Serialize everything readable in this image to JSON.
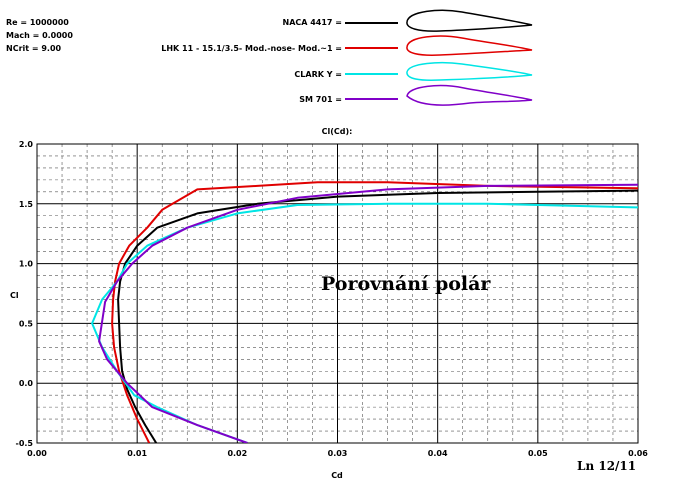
{
  "params": [
    "Re = 1000000",
    "Mach = 0.0000",
    "NCrit = 9.00"
  ],
  "chart_data": {
    "type": "line",
    "title": "Cl(Cd):",
    "xlabel": "Cd",
    "ylabel": "Cl",
    "xlim": [
      0.0,
      0.06
    ],
    "ylim": [
      -0.5,
      2.0
    ],
    "xticks": [
      "0.00",
      "0.01",
      "0.02",
      "0.03",
      "0.04",
      "0.05",
      "0.06"
    ],
    "yticks": [
      "-0.5",
      "0.0",
      "0.5",
      "1.0",
      "1.5",
      "2.0"
    ],
    "grid": true,
    "legend_position": "top",
    "annotations": [
      "Porovnání  polár",
      "Ln 12/11"
    ],
    "series": [
      {
        "name": "NACA 4417 =",
        "color": "#000000",
        "points": [
          [
            0.0119,
            -0.5
          ],
          [
            0.0108,
            -0.35
          ],
          [
            0.0098,
            -0.2
          ],
          [
            0.009,
            -0.05
          ],
          [
            0.0085,
            0.1
          ],
          [
            0.0083,
            0.3
          ],
          [
            0.0082,
            0.5
          ],
          [
            0.0081,
            0.7
          ],
          [
            0.0083,
            0.85
          ],
          [
            0.0088,
            1.0
          ],
          [
            0.01,
            1.15
          ],
          [
            0.012,
            1.3
          ],
          [
            0.016,
            1.42
          ],
          [
            0.022,
            1.5
          ],
          [
            0.03,
            1.56
          ],
          [
            0.04,
            1.59
          ],
          [
            0.05,
            1.6
          ],
          [
            0.06,
            1.61
          ]
        ]
      },
      {
        "name": "LHK 11 - 15.1/3.5- Mod.-nose- Mod.~1 =",
        "color": "#e00000",
        "points": [
          [
            0.0112,
            -0.5
          ],
          [
            0.01,
            -0.3
          ],
          [
            0.009,
            -0.1
          ],
          [
            0.0082,
            0.1
          ],
          [
            0.0077,
            0.3
          ],
          [
            0.0075,
            0.5
          ],
          [
            0.0076,
            0.7
          ],
          [
            0.0078,
            0.85
          ],
          [
            0.0082,
            1.0
          ],
          [
            0.0092,
            1.15
          ],
          [
            0.011,
            1.3
          ],
          [
            0.0125,
            1.45
          ],
          [
            0.016,
            1.62
          ],
          [
            0.022,
            1.65
          ],
          [
            0.028,
            1.68
          ],
          [
            0.035,
            1.68
          ],
          [
            0.045,
            1.65
          ],
          [
            0.06,
            1.63
          ]
        ]
      },
      {
        "name": "CLARK Y =",
        "color": "#00e5e5",
        "points": [
          [
            0.021,
            -0.5
          ],
          [
            0.016,
            -0.35
          ],
          [
            0.012,
            -0.2
          ],
          [
            0.0097,
            -0.1
          ],
          [
            0.008,
            0.1
          ],
          [
            0.0065,
            0.3
          ],
          [
            0.0055,
            0.5
          ],
          [
            0.0065,
            0.7
          ],
          [
            0.008,
            0.85
          ],
          [
            0.009,
            1.0
          ],
          [
            0.011,
            1.15
          ],
          [
            0.015,
            1.3
          ],
          [
            0.02,
            1.42
          ],
          [
            0.026,
            1.49
          ],
          [
            0.035,
            1.5
          ],
          [
            0.045,
            1.5
          ],
          [
            0.06,
            1.47
          ]
        ]
      },
      {
        "name": "SM 701 =",
        "color": "#8000c8",
        "points": [
          [
            0.021,
            -0.5
          ],
          [
            0.016,
            -0.35
          ],
          [
            0.0115,
            -0.2
          ],
          [
            0.009,
            0.0
          ],
          [
            0.007,
            0.2
          ],
          [
            0.0062,
            0.35
          ],
          [
            0.0068,
            0.68
          ],
          [
            0.008,
            0.85
          ],
          [
            0.0095,
            1.0
          ],
          [
            0.0115,
            1.15
          ],
          [
            0.015,
            1.3
          ],
          [
            0.02,
            1.45
          ],
          [
            0.026,
            1.55
          ],
          [
            0.035,
            1.62
          ],
          [
            0.045,
            1.65
          ],
          [
            0.06,
            1.66
          ]
        ]
      }
    ]
  }
}
